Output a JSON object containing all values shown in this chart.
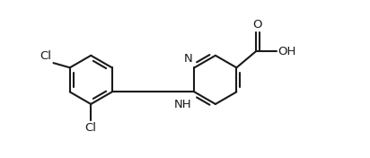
{
  "bg_color": "#ffffff",
  "line_color": "#1a1a1a",
  "line_width": 1.5,
  "font_size": 9.5,
  "figsize": [
    4.12,
    1.76
  ],
  "dpi": 100,
  "xlim": [
    0.0,
    8.5
  ],
  "ylim": [
    -1.8,
    2.2
  ]
}
